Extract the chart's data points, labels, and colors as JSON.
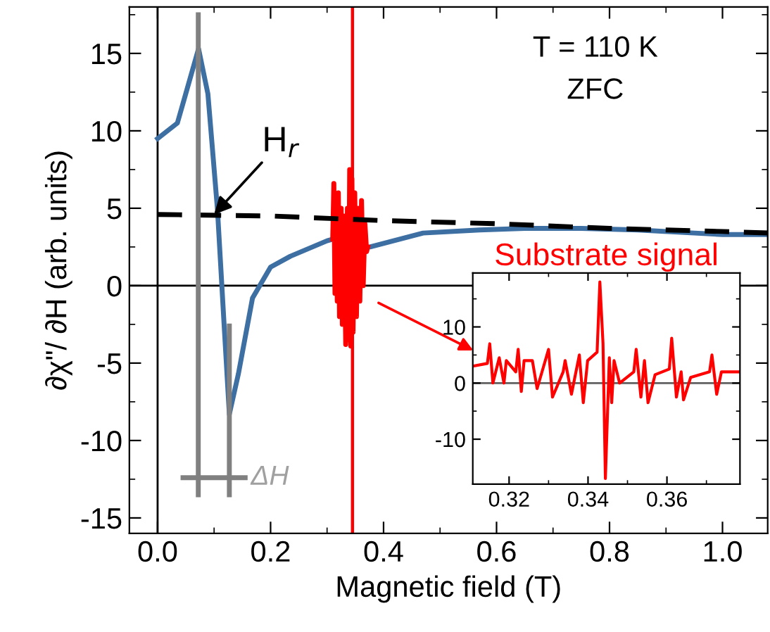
{
  "chart_data": [
    {
      "type": "line",
      "xlabel": "Magnetic field (T)",
      "ylabel": "∂χ\"/ ∂H (arb. units)",
      "xlim": [
        -0.05,
        1.08
      ],
      "ylim": [
        -16,
        18
      ],
      "xticks": [
        {
          "value": 0,
          "label": "0.0"
        },
        {
          "value": 0.1,
          "label": null
        },
        {
          "value": 0.2,
          "label": "0.2"
        },
        {
          "value": 0.3,
          "label": null
        },
        {
          "value": 0.4,
          "label": "0.4"
        },
        {
          "value": 0.5,
          "label": null
        },
        {
          "value": 0.6,
          "label": "0.6"
        },
        {
          "value": 0.7,
          "label": null
        },
        {
          "value": 0.8,
          "label": "0.8"
        },
        {
          "value": 0.9,
          "label": null
        },
        {
          "value": 1.0,
          "label": "1.0"
        }
      ],
      "yticks": [
        -15,
        {
          "value": -12.5,
          "label": null
        },
        -10,
        {
          "value": -7.5,
          "label": null
        },
        -5,
        {
          "value": -2.5,
          "label": null
        },
        0,
        {
          "value": 2.5,
          "label": null
        },
        5,
        {
          "value": 7.5,
          "label": null
        },
        10,
        {
          "value": 12.5,
          "label": null
        },
        15,
        {
          "value": 17.5,
          "label": null
        }
      ],
      "grid": false,
      "legend": false,
      "series": [
        {
          "color": "#3d6fa3",
          "x": [
            0,
            0.035,
            0.0475,
            0.0725,
            0.089,
            0.106,
            0.118,
            0.127,
            0.143,
            0.168,
            0.2,
            0.235,
            0.3,
            0.31,
            null,
            0.372,
            0.376,
            0.47,
            0.57,
            0.65,
            0.75,
            0.85,
            0.95,
            1.0,
            1.08
          ],
          "values": [
            9.5,
            10.5,
            12.1,
            15.3,
            12.4,
            4.9,
            -2.7,
            -8.3,
            -5.7,
            -0.8,
            1.2,
            1.9,
            2.9,
            3.0,
            null,
            2.5,
            2.5,
            3.4,
            3.6,
            3.7,
            3.7,
            3.6,
            3.4,
            3.3,
            3.3
          ]
        },
        {
          "color": "#ff0000",
          "x": [
            0.31,
            0.312,
            0.314,
            0.316,
            0.318,
            0.32,
            0.322,
            0.325,
            0.327,
            0.33,
            0.333,
            0.336,
            0.338,
            0.34,
            0.342,
            0.344,
            0.346,
            0.349,
            0.352,
            0.355,
            0.358,
            0.361,
            0.364,
            0.367,
            0.37,
            0.372
          ],
          "values": [
            3.0,
            6.6,
            -0.5,
            5.5,
            -1,
            6,
            -2,
            5,
            -2.5,
            4.5,
            -3.8,
            5,
            -3.5,
            7.5,
            -3.9,
            6.9,
            -3,
            6,
            -2,
            5,
            -1,
            5.5,
            0,
            4,
            2.2,
            2.5
          ]
        },
        {
          "color": "#000000",
          "line_style": "dashed",
          "x": [
            0,
            0.2,
            0.4,
            0.6,
            0.8,
            1.0,
            1.08
          ],
          "values": [
            4.6,
            4.5,
            4.2,
            4.0,
            3.7,
            3.5,
            3.4
          ]
        },
        {
          "color": "#808080",
          "x": [
            0.072,
            0.072
          ],
          "values": [
            -13.5,
            17.5
          ]
        },
        {
          "color": "#808080",
          "x": [
            0.127,
            0.127
          ],
          "values": [
            -13.5,
            -2.6
          ]
        },
        {
          "color": "#808080",
          "x": [
            0.045,
            0.155
          ],
          "values": [
            -12.4,
            -12.4
          ]
        }
      ],
      "ref_lines": [
        {
          "axis": "x",
          "value": 0,
          "color": "#000000"
        },
        {
          "axis": "y",
          "value": 0,
          "color": "#000000"
        },
        {
          "axis": "x",
          "value": 0.345,
          "color": "#ff0000"
        }
      ],
      "annotations": [
        {
          "text": "H$_{r}$",
          "x": 0.1,
          "y": 4.6
        },
        {
          "text": "ΔH",
          "x": 0.155,
          "y": -12.4
        },
        "T = 110 K",
        "ZFC"
      ]
    },
    {
      "type": "line",
      "title": "Substrate signal",
      "xlim": [
        0.3108,
        0.3785
      ],
      "ylim": [
        -18,
        19.6
      ],
      "xticks": [
        0.32,
        {
          "value": 0.33,
          "label": null
        },
        0.34,
        {
          "value": 0.35,
          "label": null
        },
        0.36,
        {
          "value": 0.37,
          "label": null
        }
      ],
      "yticks": [
        -10,
        {
          "value": -5,
          "label": null
        },
        0,
        {
          "value": 5,
          "label": null
        },
        10,
        {
          "value": 15,
          "label": null
        }
      ],
      "grid": false,
      "legend": false,
      "series": [
        {
          "color": "#ff0000",
          "x": [
            0.3108,
            0.3145,
            0.3151,
            0.3159,
            0.3175,
            0.3187,
            0.3193,
            0.3217,
            0.3223,
            0.3231,
            0.3238,
            0.3259,
            0.3271,
            0.33,
            0.331,
            0.3337,
            0.3342,
            0.3358,
            0.3378,
            0.3388,
            0.3399,
            0.3423,
            0.343,
            0.3438,
            0.3444,
            0.3454,
            0.346,
            0.3466,
            0.348,
            0.3516,
            0.3522,
            0.3534,
            0.3543,
            0.3552,
            0.357,
            0.3606,
            0.3612,
            0.3624,
            0.3636,
            0.3642,
            0.366,
            0.3708,
            0.3714,
            0.3726,
            0.3738,
            0.3785
          ],
          "values": [
            3,
            3.5,
            7,
            0,
            4.5,
            0,
            4,
            2,
            6,
            -1.5,
            4,
            4,
            -1,
            6,
            -2.5,
            2,
            4,
            -2,
            5,
            -3.5,
            4,
            5.5,
            18,
            7,
            -17,
            4.5,
            -3.5,
            4,
            0,
            2,
            6,
            -2.5,
            4,
            -3.5,
            1.5,
            2.5,
            8,
            -2.5,
            2,
            -3,
            1,
            2,
            5,
            -2,
            2,
            2
          ]
        }
      ],
      "ref_lines": [
        {
          "axis": "y",
          "value": 0,
          "color": "#606060"
        }
      ]
    }
  ]
}
